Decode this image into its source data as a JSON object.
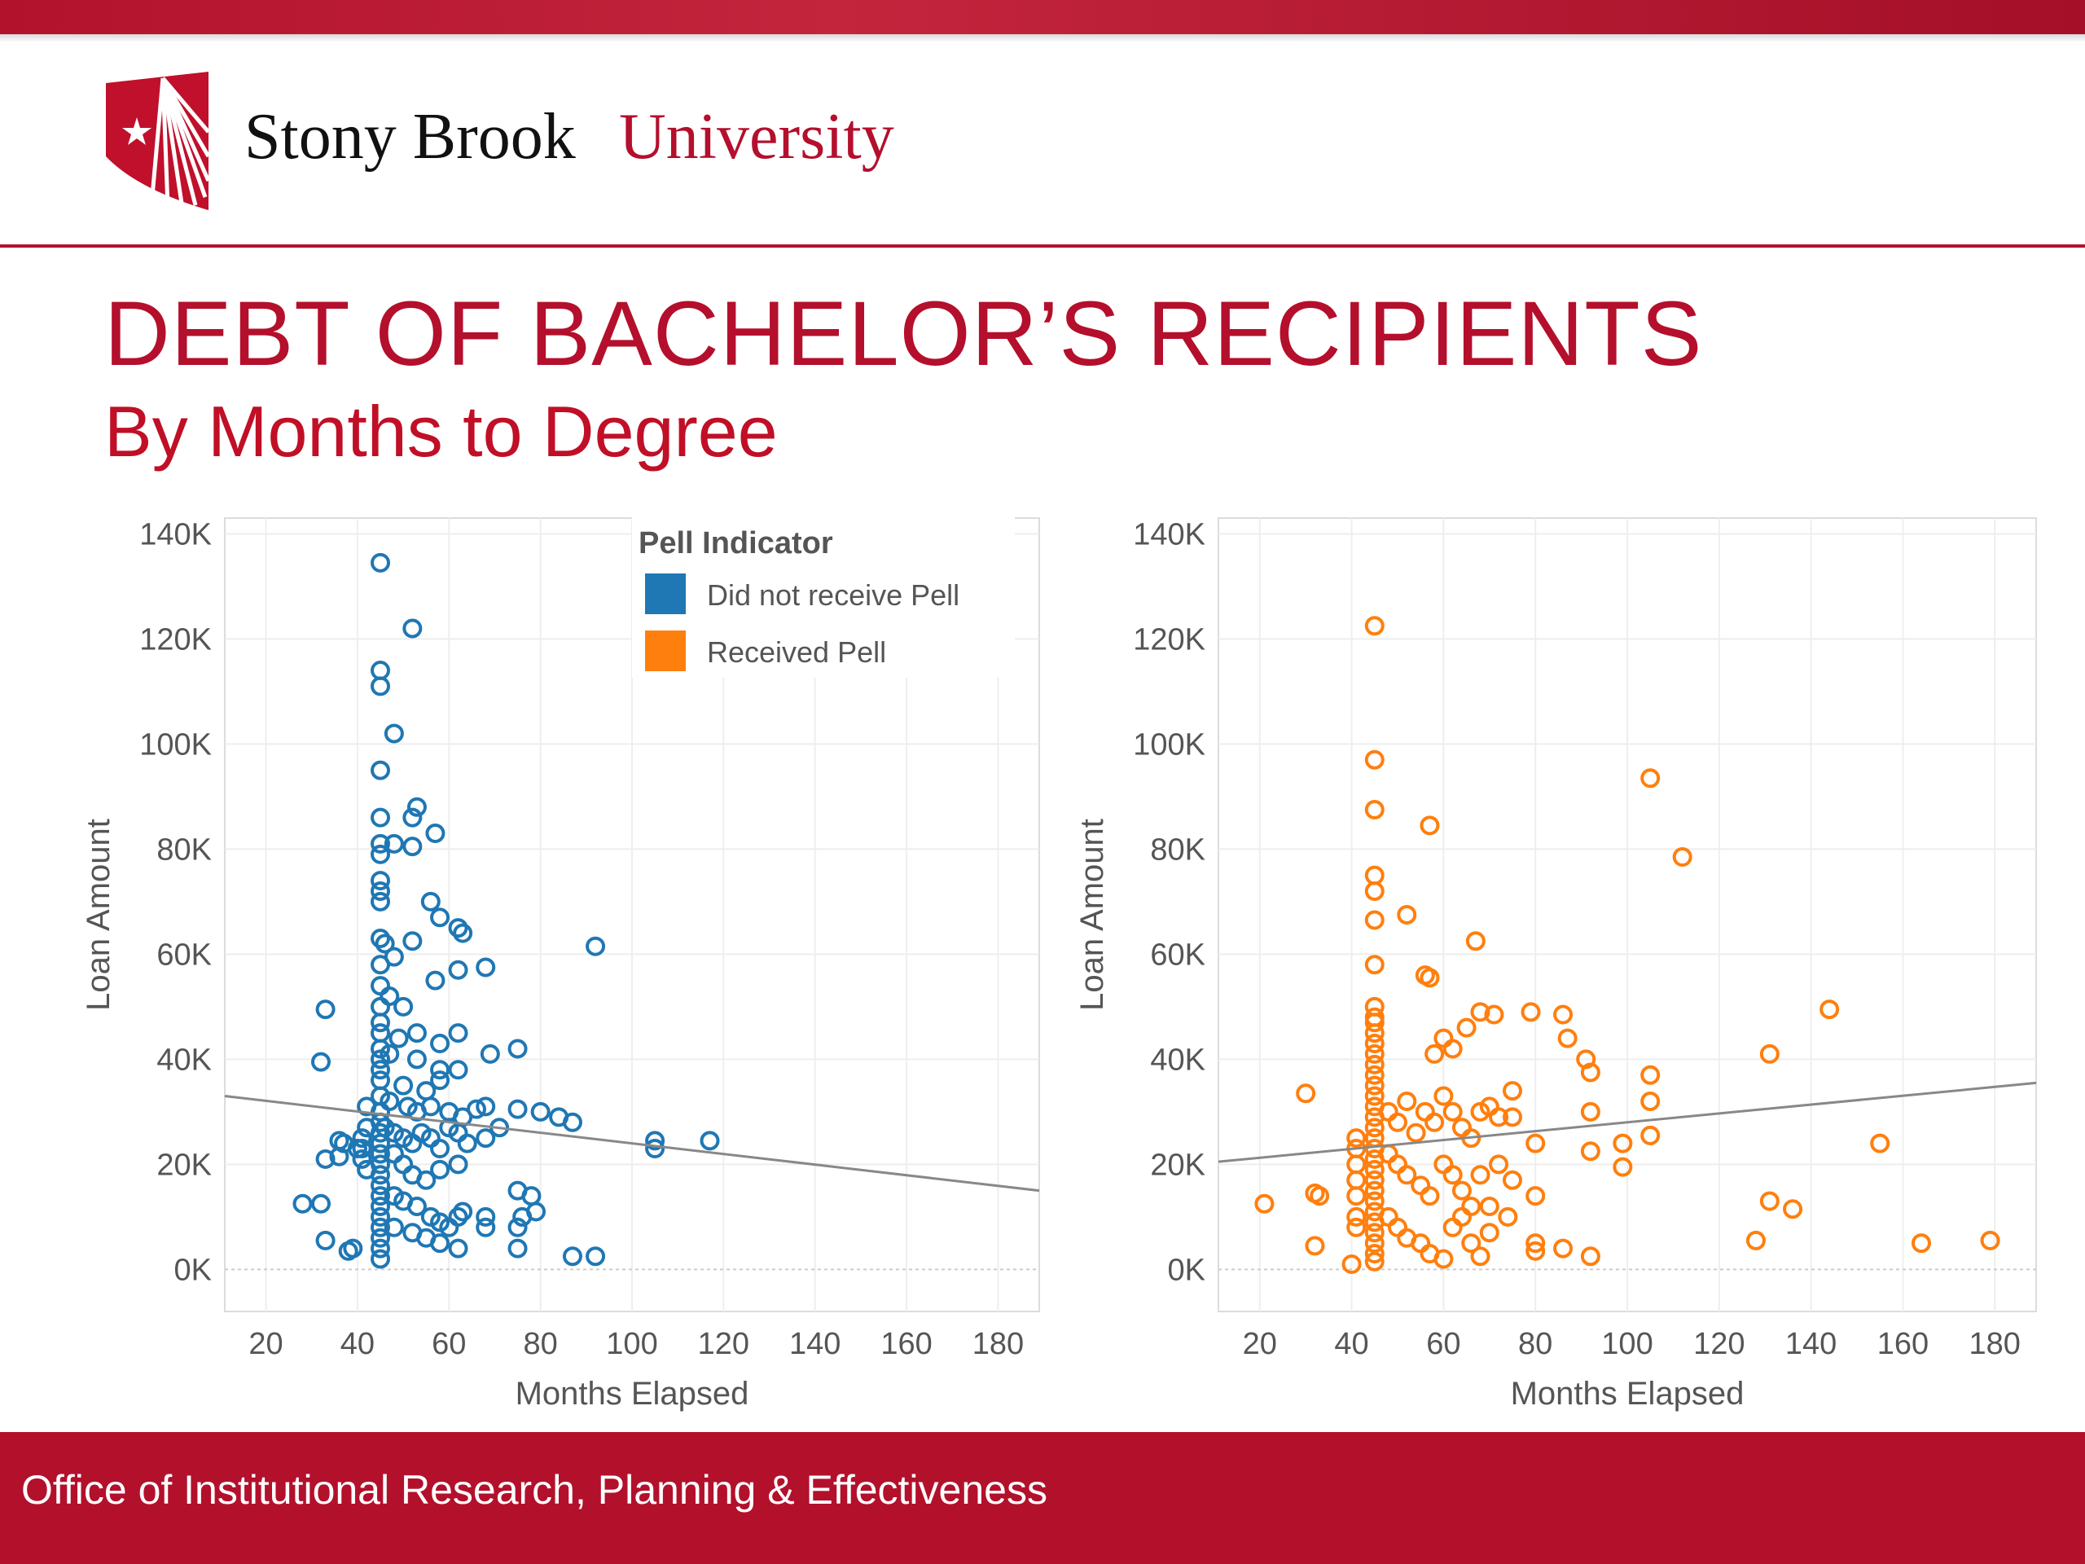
{
  "header": {
    "university_name_part1": "Stony Brook",
    "university_name_part2": "University"
  },
  "slide": {
    "title": "DEBT OF BACHELOR’S RECIPIENTS",
    "subtitle": "By Months to Degree"
  },
  "legend": {
    "title": "Pell Indicator",
    "items": [
      {
        "label": "Did not receive Pell",
        "color": "#1f77b4"
      },
      {
        "label": "Received Pell",
        "color": "#ff7f0e"
      }
    ]
  },
  "footer": {
    "text": "Office of Institutional Research, Planning & Effectiveness"
  },
  "chart_data": [
    {
      "type": "scatter",
      "series_name": "Did not receive Pell",
      "color": "#1f77b4",
      "xlabel": "Months Elapsed",
      "ylabel": "Loan Amount",
      "xlim": [
        11,
        189
      ],
      "ylim": [
        -8000,
        143000
      ],
      "x_ticks": [
        20,
        40,
        60,
        80,
        100,
        120,
        140,
        160,
        180
      ],
      "y_ticks": [
        0,
        20000,
        40000,
        60000,
        80000,
        100000,
        120000,
        140000
      ],
      "y_tick_labels": [
        "0K",
        "20K",
        "40K",
        "60K",
        "80K",
        "100K",
        "120K",
        "140K"
      ],
      "trend_line": {
        "x": [
          11,
          189
        ],
        "y": [
          33000,
          15000
        ]
      },
      "points": [
        [
          45,
          134500
        ],
        [
          52,
          122000
        ],
        [
          45,
          114000
        ],
        [
          45,
          111000
        ],
        [
          48,
          102000
        ],
        [
          45,
          95000
        ],
        [
          53,
          88000
        ],
        [
          52,
          86000
        ],
        [
          45,
          86000
        ],
        [
          57,
          83000
        ],
        [
          45,
          81000
        ],
        [
          48,
          81000
        ],
        [
          52,
          80500
        ],
        [
          45,
          79000
        ],
        [
          56,
          70000
        ],
        [
          58,
          67000
        ],
        [
          45,
          74000
        ],
        [
          45,
          72000
        ],
        [
          45,
          70000
        ],
        [
          62,
          65000
        ],
        [
          63,
          64000
        ],
        [
          45,
          63000
        ],
        [
          46,
          62000
        ],
        [
          52,
          62500
        ],
        [
          48,
          59500
        ],
        [
          45,
          58000
        ],
        [
          62,
          57000
        ],
        [
          68,
          57500
        ],
        [
          57,
          55000
        ],
        [
          45,
          54000
        ],
        [
          47,
          52000
        ],
        [
          50,
          50000
        ],
        [
          45,
          50000
        ],
        [
          45,
          47000
        ],
        [
          45,
          45000
        ],
        [
          49,
          44000
        ],
        [
          53,
          45000
        ],
        [
          62,
          45000
        ],
        [
          45,
          42000
        ],
        [
          45,
          40000
        ],
        [
          47,
          41000
        ],
        [
          53,
          40000
        ],
        [
          58,
          38000
        ],
        [
          62,
          38000
        ],
        [
          69,
          41000
        ],
        [
          75,
          42000
        ],
        [
          58,
          43000
        ],
        [
          45,
          38000
        ],
        [
          45,
          36000
        ],
        [
          50,
          35000
        ],
        [
          55,
          34000
        ],
        [
          58,
          36000
        ],
        [
          45,
          33000
        ],
        [
          47,
          32000
        ],
        [
          42,
          31000
        ],
        [
          51,
          31000
        ],
        [
          53,
          30000
        ],
        [
          56,
          31000
        ],
        [
          60,
          30000
        ],
        [
          63,
          29000
        ],
        [
          68,
          31000
        ],
        [
          66,
          30500
        ],
        [
          71,
          27000
        ],
        [
          75,
          30500
        ],
        [
          80,
          30000
        ],
        [
          84,
          29000
        ],
        [
          87,
          28000
        ],
        [
          105,
          24500
        ],
        [
          105,
          23000
        ],
        [
          117,
          24500
        ],
        [
          92,
          61500
        ],
        [
          42,
          27000
        ],
        [
          41,
          25000
        ],
        [
          41,
          23000
        ],
        [
          41,
          21000
        ],
        [
          42,
          19000
        ],
        [
          45,
          30000
        ],
        [
          45,
          28000
        ],
        [
          45,
          26000
        ],
        [
          45,
          24000
        ],
        [
          45,
          22000
        ],
        [
          45,
          20000
        ],
        [
          45,
          18000
        ],
        [
          45,
          16000
        ],
        [
          45,
          14000
        ],
        [
          45,
          12000
        ],
        [
          45,
          10000
        ],
        [
          45,
          8000
        ],
        [
          45,
          6000
        ],
        [
          45,
          4000
        ],
        [
          45,
          2000
        ],
        [
          46,
          27000
        ],
        [
          48,
          26000
        ],
        [
          50,
          25000
        ],
        [
          52,
          24000
        ],
        [
          54,
          26000
        ],
        [
          56,
          25000
        ],
        [
          58,
          23000
        ],
        [
          60,
          27000
        ],
        [
          62,
          26000
        ],
        [
          64,
          24000
        ],
        [
          68,
          25000
        ],
        [
          48,
          22000
        ],
        [
          50,
          20000
        ],
        [
          52,
          18000
        ],
        [
          55,
          17000
        ],
        [
          58,
          19000
        ],
        [
          62,
          20000
        ],
        [
          48,
          14000
        ],
        [
          50,
          13000
        ],
        [
          53,
          12000
        ],
        [
          56,
          10000
        ],
        [
          58,
          9000
        ],
        [
          60,
          8000
        ],
        [
          62,
          10000
        ],
        [
          63,
          11000
        ],
        [
          68,
          10000
        ],
        [
          68,
          8000
        ],
        [
          48,
          8000
        ],
        [
          52,
          7000
        ],
        [
          55,
          6000
        ],
        [
          58,
          5000
        ],
        [
          62,
          4000
        ],
        [
          75,
          15000
        ],
        [
          76,
          10000
        ],
        [
          75,
          8000
        ],
        [
          75,
          4000
        ],
        [
          78,
          14000
        ],
        [
          79,
          11000
        ],
        [
          87,
          2500
        ],
        [
          92,
          2500
        ],
        [
          33,
          49500
        ],
        [
          32,
          39500
        ],
        [
          36,
          24500
        ],
        [
          36,
          21500
        ],
        [
          33,
          21000
        ],
        [
          28,
          12500
        ],
        [
          32,
          12500
        ],
        [
          33,
          5500
        ],
        [
          38,
          3500
        ],
        [
          39,
          4000
        ],
        [
          40,
          23000
        ],
        [
          37,
          24000
        ]
      ]
    },
    {
      "type": "scatter",
      "series_name": "Received Pell",
      "color": "#ff7f0e",
      "xlabel": "Months Elapsed",
      "ylabel": "Loan Amount",
      "xlim": [
        11,
        189
      ],
      "ylim": [
        -8000,
        143000
      ],
      "x_ticks": [
        20,
        40,
        60,
        80,
        100,
        120,
        140,
        160,
        180
      ],
      "y_ticks": [
        0,
        20000,
        40000,
        60000,
        80000,
        100000,
        120000,
        140000
      ],
      "y_tick_labels": [
        "0K",
        "20K",
        "40K",
        "60K",
        "80K",
        "100K",
        "120K",
        "140K"
      ],
      "trend_line": {
        "x": [
          11,
          189
        ],
        "y": [
          20500,
          35500
        ]
      },
      "points": [
        [
          45,
          122500
        ],
        [
          45,
          97000
        ],
        [
          45,
          87500
        ],
        [
          57,
          84500
        ],
        [
          105,
          93500
        ],
        [
          112,
          78500
        ],
        [
          45,
          75000
        ],
        [
          45,
          72000
        ],
        [
          52,
          67500
        ],
        [
          45,
          66500
        ],
        [
          67,
          62500
        ],
        [
          56,
          56000
        ],
        [
          57,
          55500
        ],
        [
          45,
          58000
        ],
        [
          45,
          50000
        ],
        [
          45,
          48000
        ],
        [
          45,
          47000
        ],
        [
          45,
          45000
        ],
        [
          45,
          43000
        ],
        [
          45,
          41000
        ],
        [
          45,
          39000
        ],
        [
          45,
          37000
        ],
        [
          45,
          35000
        ],
        [
          45,
          33000
        ],
        [
          45,
          31000
        ],
        [
          45,
          29000
        ],
        [
          45,
          27000
        ],
        [
          45,
          25000
        ],
        [
          45,
          23000
        ],
        [
          45,
          21000
        ],
        [
          45,
          19000
        ],
        [
          45,
          17000
        ],
        [
          45,
          15000
        ],
        [
          45,
          13000
        ],
        [
          45,
          11000
        ],
        [
          45,
          9000
        ],
        [
          45,
          7000
        ],
        [
          45,
          5000
        ],
        [
          45,
          3000
        ],
        [
          45,
          1500
        ],
        [
          41,
          25000
        ],
        [
          41,
          23000
        ],
        [
          41,
          20000
        ],
        [
          41,
          17000
        ],
        [
          41,
          14000
        ],
        [
          41,
          10000
        ],
        [
          41,
          8000
        ],
        [
          48,
          30000
        ],
        [
          50,
          28000
        ],
        [
          52,
          32000
        ],
        [
          54,
          26000
        ],
        [
          56,
          30000
        ],
        [
          58,
          28000
        ],
        [
          60,
          33000
        ],
        [
          62,
          30000
        ],
        [
          64,
          27000
        ],
        [
          66,
          25000
        ],
        [
          68,
          30000
        ],
        [
          70,
          31000
        ],
        [
          72,
          29000
        ],
        [
          75,
          34000
        ],
        [
          75,
          29000
        ],
        [
          48,
          22000
        ],
        [
          50,
          20000
        ],
        [
          52,
          18000
        ],
        [
          55,
          16000
        ],
        [
          57,
          14000
        ],
        [
          60,
          20000
        ],
        [
          62,
          18000
        ],
        [
          64,
          15000
        ],
        [
          66,
          12000
        ],
        [
          68,
          18000
        ],
        [
          70,
          12000
        ],
        [
          72,
          20000
        ],
        [
          75,
          17000
        ],
        [
          48,
          10000
        ],
        [
          50,
          8000
        ],
        [
          52,
          6000
        ],
        [
          55,
          5000
        ],
        [
          57,
          3000
        ],
        [
          60,
          2000
        ],
        [
          62,
          8000
        ],
        [
          64,
          10000
        ],
        [
          66,
          5000
        ],
        [
          68,
          2500
        ],
        [
          70,
          7000
        ],
        [
          74,
          10000
        ],
        [
          58,
          41000
        ],
        [
          60,
          44000
        ],
        [
          62,
          42000
        ],
        [
          65,
          46000
        ],
        [
          68,
          49000
        ],
        [
          71,
          48500
        ],
        [
          79,
          49000
        ],
        [
          86,
          48500
        ],
        [
          87,
          44000
        ],
        [
          91,
          40000
        ],
        [
          92,
          37500
        ],
        [
          80,
          24000
        ],
        [
          80,
          14000
        ],
        [
          80,
          5000
        ],
        [
          80,
          3500
        ],
        [
          86,
          4000
        ],
        [
          92,
          2500
        ],
        [
          92,
          30000
        ],
        [
          92,
          22500
        ],
        [
          99,
          24000
        ],
        [
          99,
          19500
        ],
        [
          105,
          37000
        ],
        [
          105,
          32000
        ],
        [
          105,
          25500
        ],
        [
          131,
          41000
        ],
        [
          144,
          49500
        ],
        [
          155,
          24000
        ],
        [
          131,
          13000
        ],
        [
          136,
          11500
        ],
        [
          128,
          5500
        ],
        [
          164,
          5000
        ],
        [
          179,
          5500
        ],
        [
          33,
          14000
        ],
        [
          32,
          14500
        ],
        [
          32,
          4500
        ],
        [
          21,
          12500
        ],
        [
          30,
          33500
        ],
        [
          40,
          1000
        ]
      ]
    }
  ]
}
